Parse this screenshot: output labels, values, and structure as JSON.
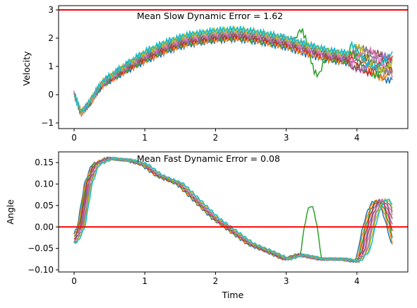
{
  "chart_data": [
    {
      "type": "line",
      "title": "",
      "xlabel": "",
      "ylabel": "Velocity",
      "xlim": [
        -0.22,
        4.72
      ],
      "ylim": [
        -1.2,
        3.15
      ],
      "xticks": [
        "0",
        "1",
        "2",
        "3",
        "4"
      ],
      "xtick_values": [
        0,
        1,
        2,
        3,
        4
      ],
      "yticks": [
        "−1",
        "0",
        "1",
        "2",
        "3"
      ],
      "ytick_values": [
        -1,
        0,
        1,
        2,
        3
      ],
      "annotation": {
        "text": "Mean Slow Dynamic Error = 1.62",
        "x": 0.9,
        "y": 2.95
      },
      "reference_line": {
        "y": 3.0,
        "color": "#ff0000"
      },
      "series_count": 10,
      "series_colors": [
        "#1f77b4",
        "#ff7f0e",
        "#2ca02c",
        "#d62728",
        "#9467bd",
        "#8c564b",
        "#e377c2",
        "#7f7f7f",
        "#bcbd22",
        "#17becf"
      ],
      "base_curve": {
        "x": [
          0,
          0.1,
          0.2,
          0.4,
          0.7,
          1.0,
          1.3,
          1.6,
          2.0,
          2.3,
          2.6,
          3.0,
          3.3,
          3.6,
          4.0,
          4.3,
          4.5
        ],
        "y": [
          0.02,
          -0.65,
          -0.35,
          0.4,
          0.9,
          1.35,
          1.7,
          1.95,
          2.1,
          2.15,
          2.05,
          1.85,
          1.6,
          1.4,
          1.25,
          1.1,
          1.0
        ]
      }
    },
    {
      "type": "line",
      "title": "",
      "xlabel": "Time",
      "ylabel": "Angle",
      "xlim": [
        -0.22,
        4.72
      ],
      "ylim": [
        -0.105,
        0.175
      ],
      "xticks": [
        "0",
        "1",
        "2",
        "3",
        "4"
      ],
      "xtick_values": [
        0,
        1,
        2,
        3,
        4
      ],
      "yticks": [
        "−0.10",
        "−0.05",
        "0.00",
        "0.05",
        "0.10",
        "0.15"
      ],
      "ytick_values": [
        -0.1,
        -0.05,
        0.0,
        0.05,
        0.1,
        0.15
      ],
      "annotation": {
        "text": "Mean Fast Dynamic Error = 0.08",
        "x": 0.9,
        "y": 0.157
      },
      "reference_line": {
        "y": 0.0,
        "color": "#ff0000"
      },
      "series_count": 10,
      "series_colors": [
        "#1f77b4",
        "#ff7f0e",
        "#2ca02c",
        "#d62728",
        "#9467bd",
        "#8c564b",
        "#e377c2",
        "#7f7f7f",
        "#bcbd22",
        "#17becf"
      ],
      "base_curve": {
        "x": [
          0,
          0.1,
          0.2,
          0.3,
          0.5,
          0.8,
          1.0,
          1.2,
          1.5,
          2.0,
          2.5,
          2.8,
          3.0,
          3.2,
          3.5,
          3.8,
          4.0,
          4.1,
          4.5
        ],
        "y": [
          -0.035,
          0.0,
          0.1,
          0.145,
          0.16,
          0.155,
          0.145,
          0.12,
          0.1,
          0.02,
          -0.04,
          -0.06,
          -0.075,
          -0.065,
          -0.075,
          -0.075,
          -0.08,
          -0.06,
          -0.04
        ]
      }
    }
  ]
}
